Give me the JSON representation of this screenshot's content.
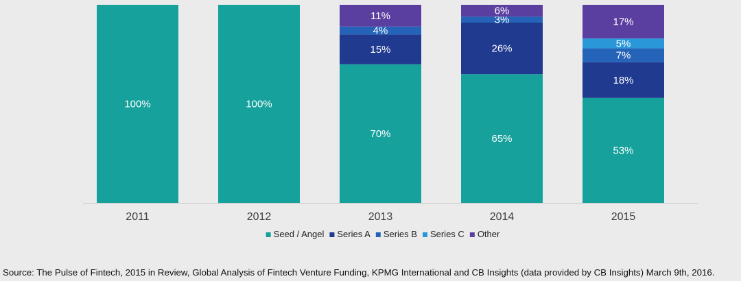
{
  "chart_data": {
    "type": "bar",
    "stacked": true,
    "categories": [
      "2011",
      "2012",
      "2013",
      "2014",
      "2015"
    ],
    "ylim": [
      0,
      100
    ],
    "grid": false,
    "legend_position": "bottom",
    "series": [
      {
        "name": "Seed / Angel",
        "color": "#17a19c",
        "values": [
          100,
          100,
          70,
          65,
          53
        ],
        "labels": [
          "100%",
          "100%",
          "70%",
          "65%",
          "53%"
        ]
      },
      {
        "name": "Series A",
        "color": "#1f3a8f",
        "values": [
          0,
          0,
          15,
          26,
          18
        ],
        "labels": [
          "",
          "",
          "15%",
          "26%",
          "18%"
        ]
      },
      {
        "name": "Series B",
        "color": "#2563b8",
        "values": [
          0,
          0,
          4,
          3,
          7
        ],
        "labels": [
          "",
          "",
          "4%",
          "3%",
          "7%"
        ]
      },
      {
        "name": "Series C",
        "color": "#2a97d8",
        "values": [
          0,
          0,
          0,
          0,
          5
        ],
        "labels": [
          "",
          "",
          "",
          "",
          "5%"
        ]
      },
      {
        "name": "Other",
        "color": "#5b3fa0",
        "values": [
          0,
          0,
          11,
          6,
          17
        ],
        "labels": [
          "",
          "",
          "11%",
          "6%",
          "17%"
        ]
      }
    ]
  },
  "source": "Source: The Pulse of Fintech, 2015 in Review, Global Analysis of Fintech Venture Funding, KPMG International and CB Insights (data provided by CB Insights) March 9th, 2016."
}
